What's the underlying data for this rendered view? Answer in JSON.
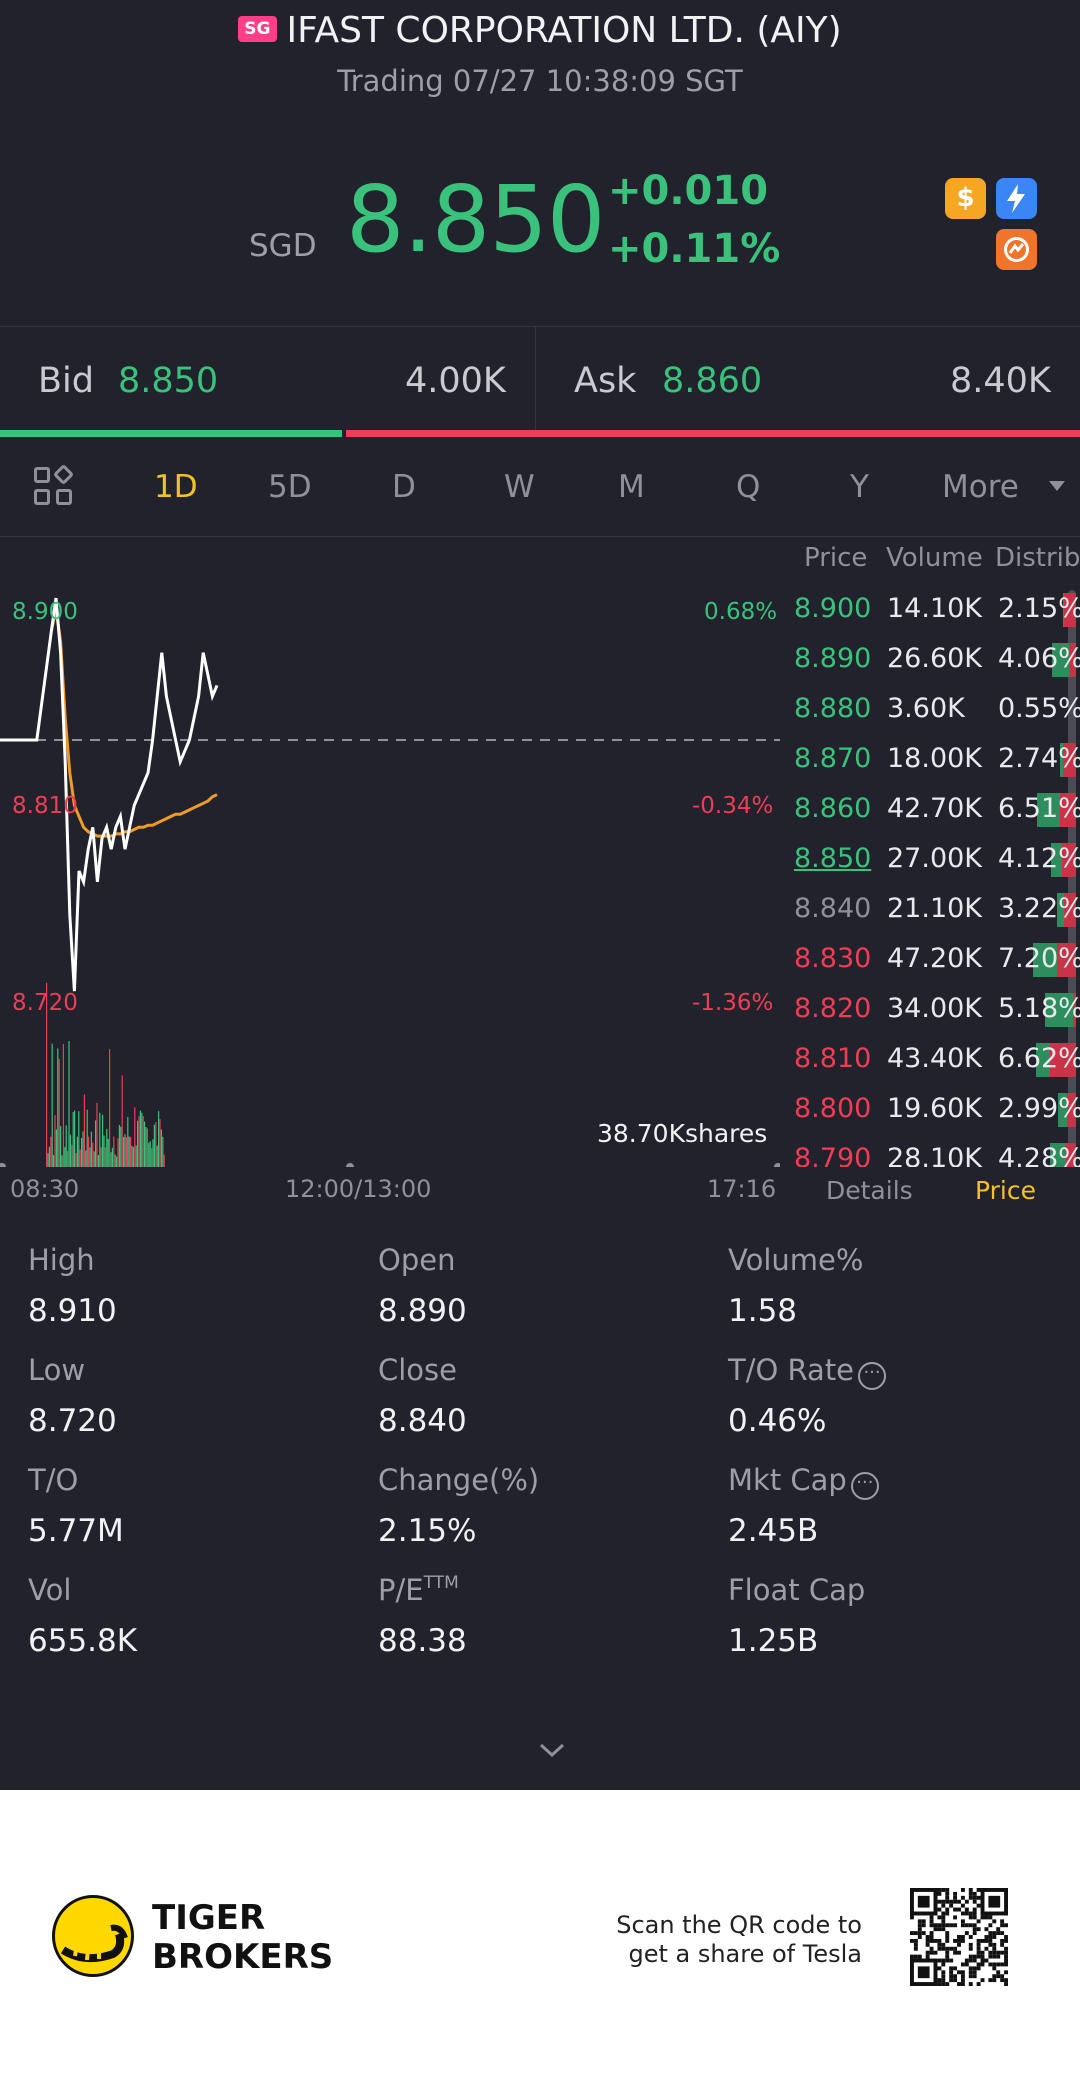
{
  "header": {
    "market_badge": "SG",
    "title": "IFAST CORPORATION LTD. (AIY)",
    "status": "Trading 07/27 10:38:09 SGT",
    "currency": "SGD",
    "price": "8.850",
    "change": "+0.010",
    "change_pct": "+0.11%",
    "icons": [
      "dollar-badge-icon",
      "flash-badge-icon",
      "orange-badge-icon"
    ]
  },
  "quote": {
    "bid_label": "Bid",
    "bid_price": "8.850",
    "bid_size": "4.00K",
    "ask_label": "Ask",
    "ask_price": "8.860",
    "ask_size": "8.40K",
    "bid_ratio": 0.32
  },
  "tabs": {
    "items": [
      "1D",
      "5D",
      "D",
      "W",
      "M",
      "Q",
      "Y"
    ],
    "active": "1D",
    "more_label": "More"
  },
  "chart_data": {
    "type": "line",
    "title": "",
    "price_labels": {
      "high": "8.900",
      "mid": "8.810",
      "low": "8.720"
    },
    "pct_labels": {
      "high": "0.68%",
      "mid": "-0.34%",
      "low": "-1.36%"
    },
    "prev_close": 8.84,
    "ylim": [
      8.72,
      8.9
    ],
    "x_ticks": [
      "08:30",
      "12:00/13:00",
      "17:16"
    ],
    "volume_label": "38.70Kshares",
    "series": [
      {
        "color": "#ffffff",
        "values": [
          8.84,
          8.84,
          8.84,
          8.84,
          8.84,
          8.84,
          8.84,
          8.84,
          8.84,
          8.89,
          8.905,
          8.88,
          8.83,
          8.76,
          8.725,
          8.78,
          8.775,
          8.79,
          8.8,
          8.775,
          8.795,
          8.8,
          8.79,
          8.8,
          8.805,
          8.79,
          8.8,
          8.81,
          8.815,
          8.82,
          8.825,
          8.84,
          8.86,
          8.88,
          8.86,
          8.85,
          8.84,
          8.83,
          8.835,
          8.84,
          8.85,
          8.86,
          8.88,
          8.87,
          8.86,
          8.865
        ]
      },
      {
        "color": "#f09a2a",
        "values": [
          null,
          null,
          null,
          null,
          null,
          null,
          null,
          null,
          null,
          8.89,
          8.9,
          8.885,
          8.85,
          8.825,
          8.81,
          8.805,
          8.8,
          8.798,
          8.797,
          8.796,
          8.796,
          8.796,
          8.796,
          8.797,
          8.797,
          8.798,
          8.798,
          8.799,
          8.8,
          8.8,
          8.801,
          8.801,
          8.802,
          8.803,
          8.804,
          8.805,
          8.806,
          8.806,
          8.807,
          8.808,
          8.809,
          8.81,
          8.811,
          8.812,
          8.814,
          8.815
        ]
      }
    ]
  },
  "order_book": {
    "headers": [
      "Price",
      "Volume",
      "Distrib"
    ],
    "rows": [
      {
        "price": "8.900",
        "volume": "14.10K",
        "dist": "2.15%",
        "side": "up",
        "buy": 0.1,
        "sell": 0.9
      },
      {
        "price": "8.890",
        "volume": "26.60K",
        "dist": "4.06%",
        "side": "up",
        "buy": 0.7,
        "sell": 0.3
      },
      {
        "price": "8.880",
        "volume": "3.60K",
        "dist": "0.55%",
        "side": "up",
        "buy": 0.0,
        "sell": 0.0
      },
      {
        "price": "8.870",
        "volume": "18.00K",
        "dist": "2.74%",
        "side": "up",
        "buy": 0.2,
        "sell": 0.8
      },
      {
        "price": "8.860",
        "volume": "42.70K",
        "dist": "6.51%",
        "side": "up",
        "buy": 0.6,
        "sell": 0.4
      },
      {
        "price": "8.850",
        "volume": "27.00K",
        "dist": "4.12%",
        "side": "current",
        "buy": 0.45,
        "sell": 0.55
      },
      {
        "price": "8.840",
        "volume": "21.10K",
        "dist": "3.22%",
        "side": "flat",
        "buy": 0.4,
        "sell": 0.6
      },
      {
        "price": "8.830",
        "volume": "47.20K",
        "dist": "7.20%",
        "side": "down",
        "buy": 0.55,
        "sell": 0.45
      },
      {
        "price": "8.820",
        "volume": "34.00K",
        "dist": "5.18%",
        "side": "down",
        "buy": 0.9,
        "sell": 0.1
      },
      {
        "price": "8.810",
        "volume": "43.40K",
        "dist": "6.62%",
        "side": "down",
        "buy": 0.35,
        "sell": 0.65
      },
      {
        "price": "8.800",
        "volume": "19.60K",
        "dist": "2.99%",
        "side": "down",
        "buy": 0.5,
        "sell": 0.5
      },
      {
        "price": "8.790",
        "volume": "28.10K",
        "dist": "4.28%",
        "side": "down",
        "buy": 0.6,
        "sell": 0.4
      }
    ],
    "tab_details": "Details",
    "tab_price": "Price"
  },
  "stats": [
    {
      "label": "High",
      "value": "8.910",
      "info": false,
      "sup": ""
    },
    {
      "label": "Open",
      "value": "8.890",
      "info": false,
      "sup": ""
    },
    {
      "label": "Volume%",
      "value": "1.58",
      "info": false,
      "sup": ""
    },
    {
      "label": "Low",
      "value": "8.720",
      "info": false,
      "sup": ""
    },
    {
      "label": "Close",
      "value": "8.840",
      "info": false,
      "sup": ""
    },
    {
      "label": "T/O Rate",
      "value": "0.46%",
      "info": true,
      "sup": ""
    },
    {
      "label": "T/O",
      "value": "5.77M",
      "info": false,
      "sup": ""
    },
    {
      "label": "Change(%)",
      "value": "2.15%",
      "info": false,
      "sup": ""
    },
    {
      "label": "Mkt Cap",
      "value": "2.45B",
      "info": true,
      "sup": ""
    },
    {
      "label": "Vol",
      "value": "655.8K",
      "info": false,
      "sup": ""
    },
    {
      "label": "P/E",
      "value": "88.38",
      "info": false,
      "sup": "TTM"
    },
    {
      "label": "Float Cap",
      "value": "1.25B",
      "info": false,
      "sup": ""
    }
  ],
  "footer": {
    "brand_line1": "TIGER",
    "brand_line2": "BROKERS",
    "scan_line1": "Scan the QR code to",
    "scan_line2": "get a share of Tesla"
  },
  "colors": {
    "up": "#3ac27d",
    "down": "#ee3d55",
    "flat": "#8f919a",
    "accent": "#f5c225",
    "background": "#21222b"
  }
}
